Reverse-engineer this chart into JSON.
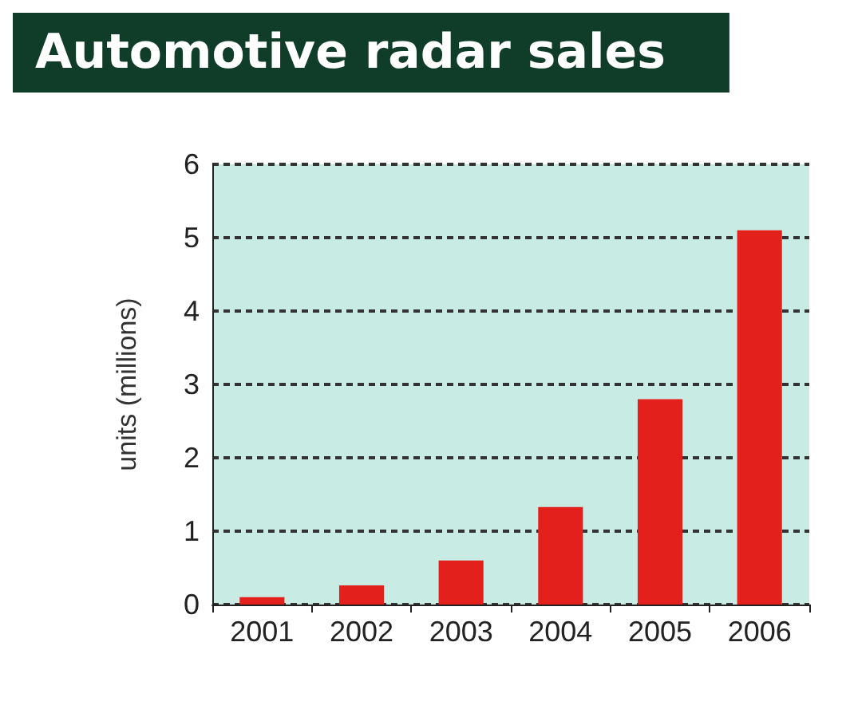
{
  "chart_data": {
    "type": "bar",
    "title": "Automotive radar sales",
    "ylabel": "units (millions)",
    "categories": [
      "2001",
      "2002",
      "2003",
      "2004",
      "2005",
      "2006"
    ],
    "values": [
      0.1,
      0.26,
      0.6,
      1.33,
      2.8,
      5.1
    ],
    "color": "#e3201b",
    "ylim": [
      0,
      6
    ],
    "yticks": [
      0,
      1,
      2,
      3,
      4,
      5,
      6
    ],
    "grid": true
  }
}
